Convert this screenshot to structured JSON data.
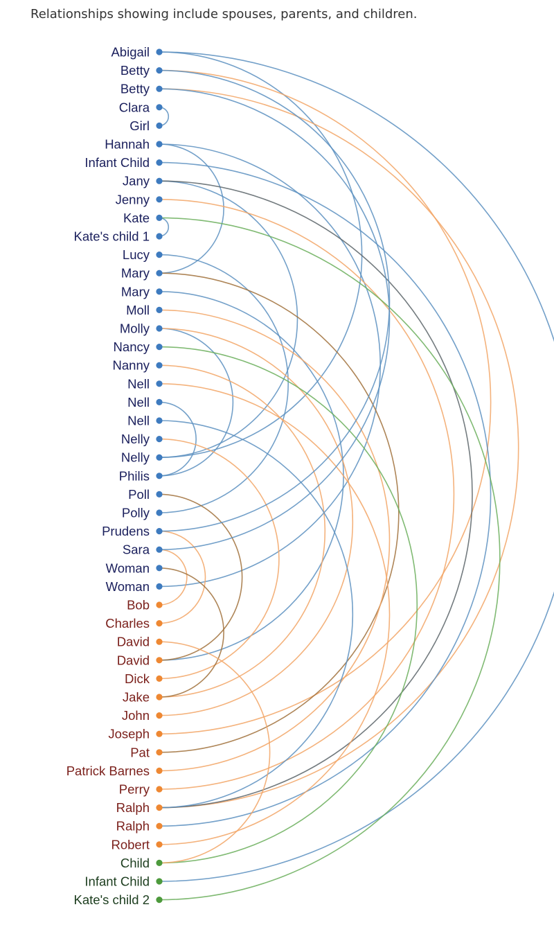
{
  "caption": "Relationships showing include spouses, parents, and children.",
  "chart_data": {
    "type": "arc-diagram",
    "group_colors": {
      "female": {
        "label": "#1a1f5c",
        "dot": "#3e7bbf",
        "arc": "#5b8fc0"
      },
      "male": {
        "label": "#7a1f1a",
        "dot": "#ee8833",
        "arc": "#f2a565"
      },
      "child": {
        "label": "#1c3d1e",
        "dot": "#4d9a3c",
        "arc": "#6aae5a"
      }
    },
    "link_colors": {
      "spouse-ff": "#5b8fc0",
      "spouse-fm": "#f2a565",
      "parent": "#5b8fc0",
      "child": "#6aae5a",
      "brown": "#a0703a",
      "gray": "#5a6468"
    },
    "nodes": [
      {
        "label": "Abigail",
        "group": "female"
      },
      {
        "label": "Betty",
        "group": "female"
      },
      {
        "label": "Betty",
        "group": "female"
      },
      {
        "label": "Clara",
        "group": "female"
      },
      {
        "label": "Girl",
        "group": "female"
      },
      {
        "label": "Hannah",
        "group": "female"
      },
      {
        "label": "Infant Child",
        "group": "female"
      },
      {
        "label": "Jany",
        "group": "female"
      },
      {
        "label": "Jenny",
        "group": "female"
      },
      {
        "label": "Kate",
        "group": "female"
      },
      {
        "label": "Kate's child 1",
        "group": "female"
      },
      {
        "label": "Lucy",
        "group": "female"
      },
      {
        "label": "Mary",
        "group": "female"
      },
      {
        "label": "Mary",
        "group": "female"
      },
      {
        "label": "Moll",
        "group": "female"
      },
      {
        "label": "Molly",
        "group": "female"
      },
      {
        "label": "Nancy",
        "group": "female"
      },
      {
        "label": "Nanny",
        "group": "female"
      },
      {
        "label": "Nell",
        "group": "female"
      },
      {
        "label": "Nell",
        "group": "female"
      },
      {
        "label": "Nell",
        "group": "female"
      },
      {
        "label": "Nelly",
        "group": "female"
      },
      {
        "label": "Nelly",
        "group": "female"
      },
      {
        "label": "Philis",
        "group": "female"
      },
      {
        "label": "Poll",
        "group": "female"
      },
      {
        "label": "Polly",
        "group": "female"
      },
      {
        "label": "Prudens",
        "group": "female"
      },
      {
        "label": "Sara",
        "group": "female"
      },
      {
        "label": "Woman",
        "group": "female"
      },
      {
        "label": "Woman",
        "group": "female"
      },
      {
        "label": "Bob",
        "group": "male"
      },
      {
        "label": "Charles",
        "group": "male"
      },
      {
        "label": "David",
        "group": "male"
      },
      {
        "label": "David",
        "group": "male"
      },
      {
        "label": "Dick",
        "group": "male"
      },
      {
        "label": "Jake",
        "group": "male"
      },
      {
        "label": "John",
        "group": "male"
      },
      {
        "label": "Joseph",
        "group": "male"
      },
      {
        "label": "Pat",
        "group": "male"
      },
      {
        "label": "Patrick Barnes",
        "group": "male"
      },
      {
        "label": "Perry",
        "group": "male"
      },
      {
        "label": "Ralph",
        "group": "male"
      },
      {
        "label": "Ralph",
        "group": "male"
      },
      {
        "label": "Robert",
        "group": "male"
      },
      {
        "label": "Child",
        "group": "child"
      },
      {
        "label": "Infant Child",
        "group": "child"
      },
      {
        "label": "Kate's child 2",
        "group": "child"
      }
    ],
    "links": [
      {
        "source": 0,
        "target": 22,
        "kind": "spouse-ff"
      },
      {
        "source": 0,
        "target": 45,
        "kind": "parent"
      },
      {
        "source": 1,
        "target": 37,
        "kind": "spouse-fm"
      },
      {
        "source": 2,
        "target": 41,
        "kind": "spouse-fm"
      },
      {
        "source": 3,
        "target": 4,
        "kind": "parent"
      },
      {
        "source": 5,
        "target": 12,
        "kind": "parent"
      },
      {
        "source": 5,
        "target": 29,
        "kind": "parent"
      },
      {
        "source": 6,
        "target": 42,
        "kind": "parent"
      },
      {
        "source": 7,
        "target": 22,
        "kind": "parent"
      },
      {
        "source": 7,
        "target": 41,
        "kind": "gray"
      },
      {
        "source": 8,
        "target": 40,
        "kind": "spouse-fm"
      },
      {
        "source": 9,
        "target": 10,
        "kind": "parent"
      },
      {
        "source": 9,
        "target": 46,
        "kind": "child"
      },
      {
        "source": 11,
        "target": 25,
        "kind": "parent"
      },
      {
        "source": 12,
        "target": 38,
        "kind": "brown"
      },
      {
        "source": 13,
        "target": 33,
        "kind": "parent"
      },
      {
        "source": 14,
        "target": 39,
        "kind": "spouse-fm"
      },
      {
        "source": 15,
        "target": 23,
        "kind": "parent"
      },
      {
        "source": 15,
        "target": 36,
        "kind": "spouse-fm"
      },
      {
        "source": 16,
        "target": 44,
        "kind": "child"
      },
      {
        "source": 17,
        "target": 35,
        "kind": "spouse-fm"
      },
      {
        "source": 18,
        "target": 43,
        "kind": "spouse-fm"
      },
      {
        "source": 19,
        "target": 23,
        "kind": "parent"
      },
      {
        "source": 20,
        "target": 41,
        "kind": "parent"
      },
      {
        "source": 21,
        "target": 34,
        "kind": "spouse-fm"
      },
      {
        "source": 24,
        "target": 33,
        "kind": "brown"
      },
      {
        "source": 26,
        "target": 31,
        "kind": "spouse-fm"
      },
      {
        "source": 27,
        "target": 30,
        "kind": "spouse-fm"
      },
      {
        "source": 28,
        "target": 35,
        "kind": "brown"
      },
      {
        "source": 1,
        "target": 26,
        "kind": "parent"
      },
      {
        "source": 2,
        "target": 27,
        "kind": "parent"
      },
      {
        "source": 32,
        "target": 44,
        "kind": "spouse-fm"
      }
    ]
  }
}
